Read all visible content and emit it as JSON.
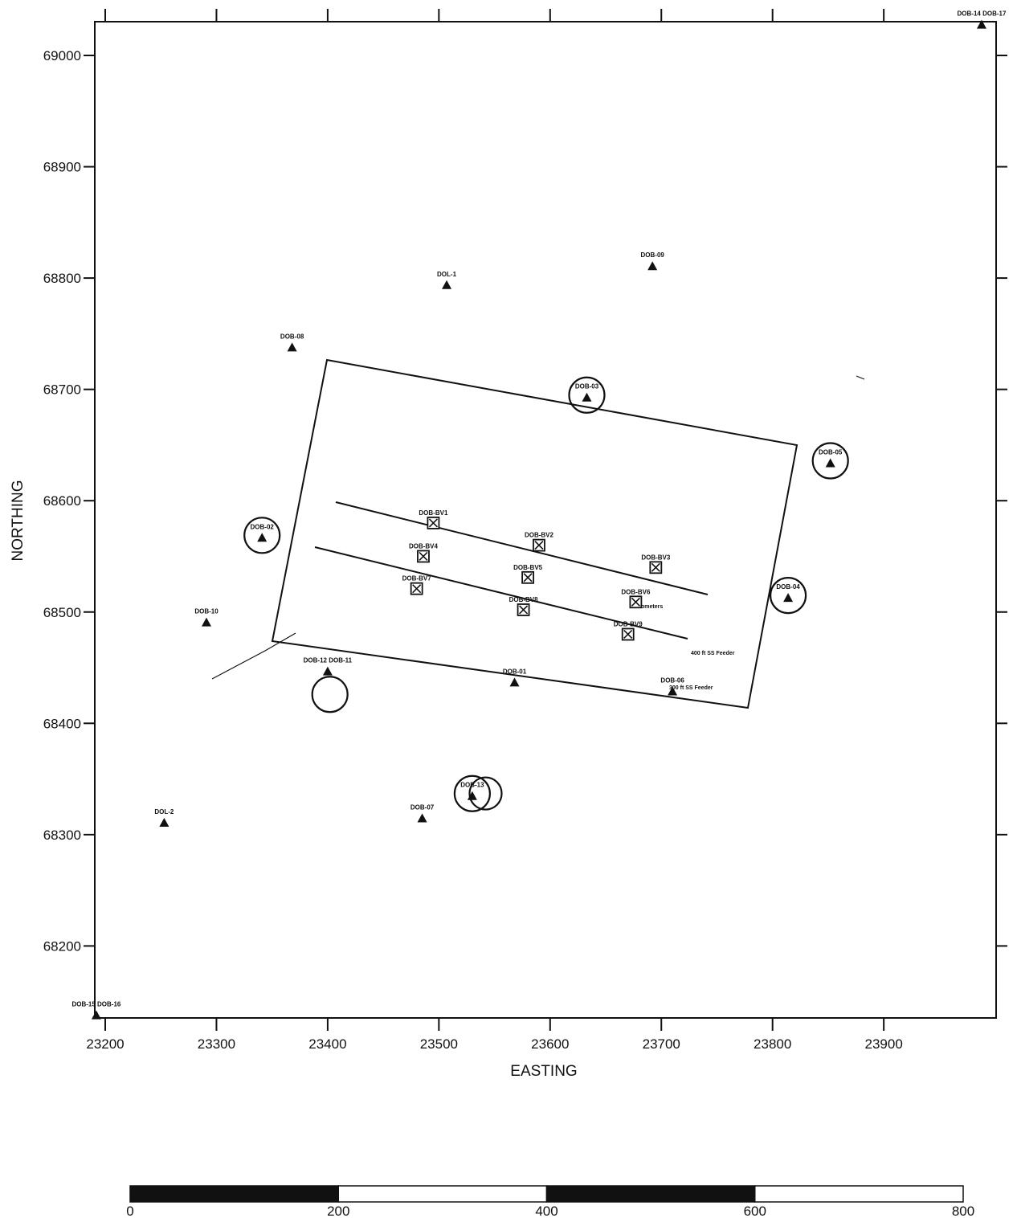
{
  "axes": {
    "x_label": "EASTING",
    "y_label": "NORTHING",
    "x_ticks": [
      "23200",
      "23300",
      "23400",
      "23500",
      "23600",
      "23700",
      "23800",
      "23900"
    ],
    "y_ticks": [
      "69000",
      "68900",
      "68800",
      "68700",
      "68600",
      "68500",
      "68400",
      "68300",
      "68200"
    ]
  },
  "wells": [
    {
      "id": "DOB-09",
      "e": 23692,
      "n": 68810,
      "label": "DOB-09"
    },
    {
      "id": "DOL-1",
      "e": 23507,
      "n": 68793,
      "label": "DOL-1"
    },
    {
      "id": "DOB-08",
      "e": 23368,
      "n": 68737,
      "label": "DOB-08"
    },
    {
      "id": "DOB-03",
      "e": 23633,
      "n": 68692,
      "label": "DOB-03",
      "circled": true
    },
    {
      "id": "DOB-05",
      "e": 23852,
      "n": 68633,
      "label": "DOB-05",
      "circled": true
    },
    {
      "id": "DOB-02",
      "e": 23341,
      "n": 68566,
      "label": "DOB-02",
      "circled": true
    },
    {
      "id": "DOB-04",
      "e": 23814,
      "n": 68512,
      "label": "DOB-04",
      "circled": true
    },
    {
      "id": "DOB-10",
      "e": 23291,
      "n": 68490,
      "label": "DOB-10"
    },
    {
      "id": "DOB-12",
      "e": 23400,
      "n": 68446,
      "label": "DOB-12 DOB-11"
    },
    {
      "id": "DOB-01",
      "e": 23568,
      "n": 68436,
      "label": "DOB-01"
    },
    {
      "id": "DOB-06",
      "e": 23710,
      "n": 68428,
      "label": "DOB-06"
    },
    {
      "id": "DOB-13",
      "e": 23530,
      "n": 68334,
      "label": "DOB-13",
      "circled": true
    },
    {
      "id": "DOB-07",
      "e": 23485,
      "n": 68314,
      "label": "DOB-07"
    },
    {
      "id": "DOL-2",
      "e": 23253,
      "n": 68310,
      "label": "DOL-2"
    },
    {
      "id": "DOB-15",
      "e": 23192,
      "n": 68137,
      "label": "DOB-15 DOB-16"
    },
    {
      "id": "DOB-14",
      "e": 23988,
      "n": 69027,
      "label": "DOB-14 DOB-17"
    }
  ],
  "piezometers": [
    {
      "id": "DOB-BV1",
      "e": 23495,
      "n": 68580,
      "label": "DOB-BV1"
    },
    {
      "id": "DOB-BV2",
      "e": 23590,
      "n": 68560,
      "label": "DOB-BV2"
    },
    {
      "id": "DOB-BV3",
      "e": 23695,
      "n": 68540,
      "label": "DOB-BV3"
    },
    {
      "id": "DOB-BV4",
      "e": 23486,
      "n": 68550,
      "label": "DOB-BV4"
    },
    {
      "id": "DOB-BV5",
      "e": 23580,
      "n": 68531,
      "label": "DOB-BV5"
    },
    {
      "id": "DOB-BV6",
      "e": 23677,
      "n": 68509,
      "label": "DOB-BV6"
    },
    {
      "id": "DOB-BV7",
      "e": 23480,
      "n": 68521,
      "label": "DOB-BV7"
    },
    {
      "id": "DOB-BV8",
      "e": 23576,
      "n": 68502,
      "label": "DOB-BV8"
    },
    {
      "id": "DOB-BV9",
      "e": 23670,
      "n": 68480,
      "label": "DOB-BV9"
    }
  ],
  "annotations": {
    "piezometers_note": "Piezometers",
    "feeder_400": "400 ft SS Feeder",
    "feeder_300": "300 ft SS Feeder"
  },
  "scale_bar": {
    "labels": [
      "0",
      "200",
      "400",
      "600",
      "800"
    ],
    "segments": [
      "black",
      "white",
      "black",
      "white"
    ]
  }
}
